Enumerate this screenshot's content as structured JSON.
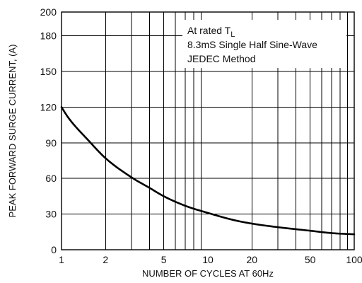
{
  "chart_data": {
    "type": "line",
    "title": "",
    "xlabel": "NUMBER OF CYCLES AT 60Hz",
    "ylabel": "PEAK  FORWARD SURGE CURRENT, (A)",
    "xscale": "log",
    "xlim": [
      1,
      100
    ],
    "ylim": [
      0,
      200
    ],
    "grid": true,
    "x_ticks": [
      1,
      2,
      5,
      10,
      20,
      50,
      100
    ],
    "x_tick_labels": [
      "1",
      "2",
      "5",
      "10",
      "20",
      "50",
      "100"
    ],
    "y_ticks": [
      0,
      30,
      60,
      90,
      120,
      150,
      180,
      200
    ],
    "y_tick_labels": [
      "0",
      "30",
      "60",
      "90",
      "120",
      "150",
      "180",
      "200"
    ],
    "annotation": {
      "line1_text": "At rated T",
      "line1_sub": "L",
      "line2": "8.3mS Single Half Sine-Wave",
      "line3": "JEDEC Method"
    },
    "series": [
      {
        "x": [
          1,
          1.1,
          1.2,
          1.5,
          2,
          3,
          4,
          5,
          7,
          10,
          15,
          20,
          30,
          50,
          70,
          100
        ],
        "y": [
          120,
          112,
          106,
          93,
          77,
          61,
          52,
          45,
          37,
          31,
          25,
          22,
          19,
          16,
          14,
          13
        ]
      }
    ]
  }
}
